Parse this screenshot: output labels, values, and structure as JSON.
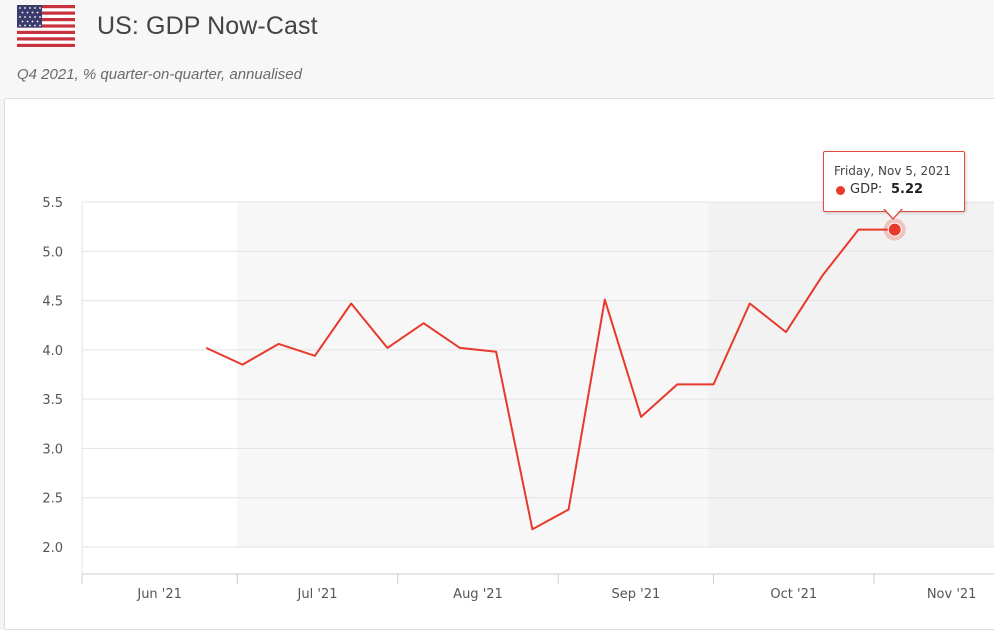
{
  "header": {
    "title": "US: GDP Now-Cast",
    "subtitle": "Q4 2021, % quarter-on-quarter, annualised",
    "flag_icon": "us-flag-icon"
  },
  "colors": {
    "series": "#e8392c",
    "grid": "#e3e3e3",
    "band": "#f2f2f2",
    "axis": "#cccccc"
  },
  "tooltip": {
    "date": "Friday, Nov 5, 2021",
    "series_label": "GDP:",
    "value": "5.22"
  },
  "chart_data": {
    "type": "line",
    "title": "US: GDP Now-Cast",
    "subtitle": "Q4 2021, % quarter-on-quarter, annualised",
    "xlabel": "",
    "ylabel": "",
    "ylim": [
      2.0,
      5.5
    ],
    "yticks": [
      "2.0",
      "2.5",
      "3.0",
      "3.5",
      "4.0",
      "4.5",
      "5.0",
      "5.5"
    ],
    "xticks": [
      "Jun '21",
      "Jul '21",
      "Aug '21",
      "Sep '21",
      "Oct '21",
      "Nov '21"
    ],
    "grid": true,
    "legend": "none",
    "series": [
      {
        "name": "GDP",
        "x": [
          "2021-06-25",
          "2021-07-02",
          "2021-07-09",
          "2021-07-16",
          "2021-07-23",
          "2021-07-30",
          "2021-08-06",
          "2021-08-13",
          "2021-08-20",
          "2021-08-27",
          "2021-09-03",
          "2021-09-10",
          "2021-09-17",
          "2021-09-24",
          "2021-10-01",
          "2021-10-08",
          "2021-10-15",
          "2021-10-22",
          "2021-10-29",
          "2021-11-05"
        ],
        "values": [
          4.02,
          3.85,
          4.06,
          3.94,
          4.47,
          4.02,
          4.27,
          4.02,
          3.98,
          2.18,
          2.38,
          4.51,
          3.32,
          3.65,
          3.65,
          4.47,
          4.18,
          4.75,
          5.22,
          5.22
        ]
      }
    ]
  }
}
